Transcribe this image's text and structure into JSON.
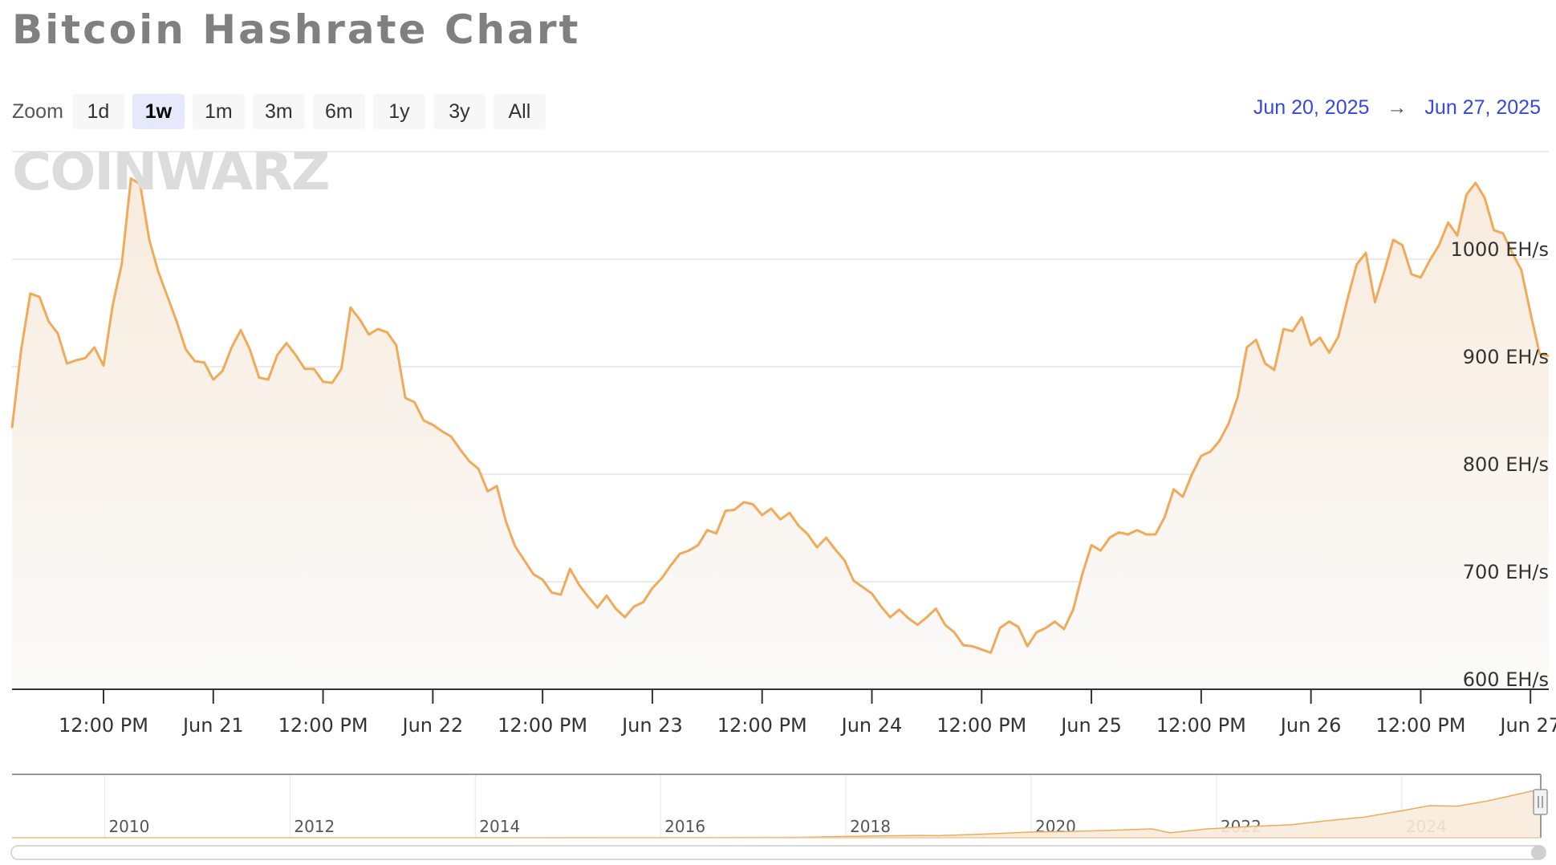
{
  "title": "Bitcoin Hashrate Chart",
  "watermark": "COINWARZ",
  "zoom": {
    "label": "Zoom",
    "buttons": [
      "1d",
      "1w",
      "1m",
      "3m",
      "6m",
      "1y",
      "3y",
      "All"
    ],
    "active": "1w"
  },
  "range": {
    "from": "Jun 20, 2025",
    "arrow": "→",
    "to": "Jun 27, 2025"
  },
  "colors": {
    "line": "#f0aa5a",
    "fill_top": "#f8ebdd",
    "fill_bottom": "#fafafa",
    "date_link": "#3548e0"
  },
  "chart_data": {
    "type": "area",
    "title": "Bitcoin Hashrate Chart",
    "y_unit": "EH/s",
    "ylim": [
      600,
      1100
    ],
    "yticks": [
      600,
      700,
      800,
      900,
      1000
    ],
    "ytick_labels": [
      "600 EH/s",
      "700 EH/s",
      "800 EH/s",
      "900 EH/s",
      "1000 EH/s"
    ],
    "x_start": "2025-06-20T02:00",
    "x_step_hours": 1,
    "xticks": [
      {
        "hour": 10,
        "label": "12:00 PM"
      },
      {
        "hour": 22,
        "label": "Jun 21"
      },
      {
        "hour": 34,
        "label": "12:00 PM"
      },
      {
        "hour": 46,
        "label": "Jun 22"
      },
      {
        "hour": 58,
        "label": "12:00 PM"
      },
      {
        "hour": 70,
        "label": "Jun 23"
      },
      {
        "hour": 82,
        "label": "12:00 PM"
      },
      {
        "hour": 94,
        "label": "Jun 24"
      },
      {
        "hour": 106,
        "label": "12:00 PM"
      },
      {
        "hour": 118,
        "label": "Jun 25"
      },
      {
        "hour": 130,
        "label": "12:00 PM"
      },
      {
        "hour": 142,
        "label": "Jun 26"
      },
      {
        "hour": 154,
        "label": "12:00 PM"
      },
      {
        "hour": 166,
        "label": "Jun 27"
      }
    ],
    "values": [
      843,
      916,
      968,
      965,
      942,
      931,
      903,
      906,
      908,
      918,
      901,
      957,
      996,
      1075,
      1070,
      1018,
      988,
      965,
      942,
      916,
      905,
      904,
      888,
      896,
      918,
      934,
      916,
      890,
      888,
      911,
      922,
      911,
      898,
      898,
      886,
      885,
      898,
      955,
      944,
      930,
      935,
      932,
      920,
      871,
      867,
      850,
      846,
      840,
      835,
      823,
      812,
      805,
      784,
      789,
      756,
      733,
      720,
      707,
      702,
      690,
      688,
      712,
      697,
      686,
      676,
      687,
      675,
      667,
      677,
      681,
      694,
      703,
      715,
      726,
      729,
      734,
      748,
      745,
      766,
      767,
      774,
      772,
      762,
      768,
      758,
      764,
      752,
      744,
      732,
      741,
      730,
      720,
      701,
      695,
      689,
      677,
      667,
      674,
      666,
      660,
      667,
      675,
      660,
      653,
      641,
      640,
      637,
      634,
      657,
      663,
      658,
      640,
      653,
      657,
      663,
      656,
      674,
      707,
      734,
      729,
      741,
      746,
      744,
      748,
      744,
      744,
      760,
      786,
      779,
      800,
      817,
      821,
      831,
      847,
      872,
      918,
      925,
      903,
      897,
      935,
      933,
      946,
      920,
      927,
      913,
      928,
      963,
      995,
      1006,
      960,
      988,
      1018,
      1013,
      986,
      983,
      999,
      1013,
      1034,
      1022,
      1060,
      1071,
      1057,
      1027,
      1024,
      1006,
      990,
      950,
      912,
      910
    ],
    "grid": true,
    "navigator": {
      "xlim": [
        2009.0,
        2025.5
      ],
      "year_labels": [
        "2010",
        "2012",
        "2014",
        "2016",
        "2018",
        "2020",
        "2022",
        "2024"
      ],
      "years": [
        2010,
        2012,
        2014,
        2016,
        2018,
        2020,
        2022,
        2024
      ],
      "ylim": [
        0,
        1100
      ],
      "series": [
        [
          2009.0,
          0
        ],
        [
          2012,
          0
        ],
        [
          2016,
          1
        ],
        [
          2017.5,
          8
        ],
        [
          2018,
          25
        ],
        [
          2018.8,
          45
        ],
        [
          2019,
          40
        ],
        [
          2019.5,
          70
        ],
        [
          2020,
          110
        ],
        [
          2020.4,
          120
        ],
        [
          2020.8,
          140
        ],
        [
          2021.3,
          170
        ],
        [
          2021.5,
          95
        ],
        [
          2021.9,
          170
        ],
        [
          2022.3,
          210
        ],
        [
          2022.8,
          250
        ],
        [
          2023.2,
          330
        ],
        [
          2023.6,
          400
        ],
        [
          2024,
          520
        ],
        [
          2024.3,
          620
        ],
        [
          2024.6,
          610
        ],
        [
          2024.9,
          700
        ],
        [
          2025.2,
          820
        ],
        [
          2025.4,
          900
        ],
        [
          2025.5,
          880
        ]
      ]
    }
  }
}
